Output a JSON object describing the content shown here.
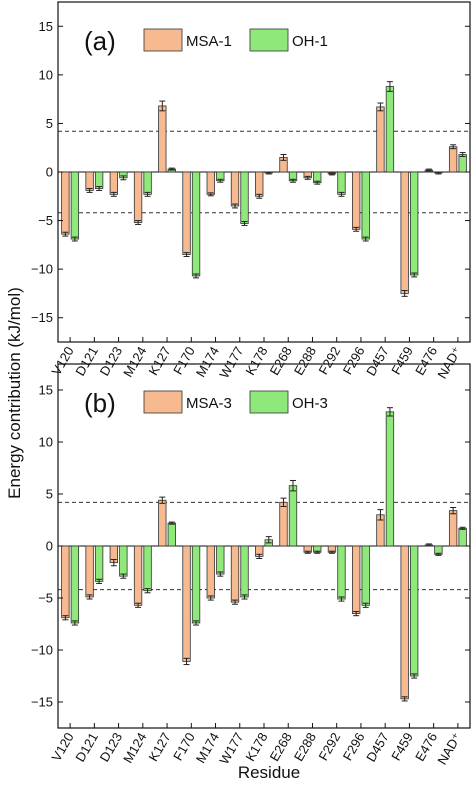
{
  "figure": {
    "ylabel": "Energy contribution (kJ/mol)",
    "xlabel": "Residue"
  },
  "chart_data": [
    {
      "type": "bar",
      "panel_label": "(a)",
      "categories": [
        "V120",
        "D121",
        "D123",
        "M124",
        "K127",
        "F170",
        "M174",
        "W177",
        "K178",
        "E268",
        "E288",
        "F292",
        "F296",
        "D457",
        "F459",
        "E476",
        "NAD⁺"
      ],
      "series": [
        {
          "name": "MSA-1",
          "color": "#f7b98f",
          "values": [
            -6.4,
            -1.9,
            -2.3,
            -5.2,
            6.8,
            -8.5,
            -2.3,
            -3.5,
            -2.5,
            1.5,
            -0.6,
            -0.2,
            -5.9,
            6.7,
            -12.5,
            0.2,
            2.6
          ],
          "errors": [
            0.2,
            0.2,
            0.2,
            0.2,
            0.5,
            0.2,
            0.15,
            0.2,
            0.2,
            0.3,
            0.15,
            0.1,
            0.2,
            0.4,
            0.3,
            0.1,
            0.2
          ]
        },
        {
          "name": "OH-1",
          "color": "#8ee87a",
          "values": [
            -6.9,
            -1.7,
            -0.6,
            -2.3,
            0.3,
            -10.7,
            -0.9,
            -5.3,
            -0.1,
            -0.9,
            -1.1,
            -2.3,
            -6.9,
            8.8,
            -10.6,
            -0.1,
            1.8
          ],
          "errors": [
            0.2,
            0.2,
            0.2,
            0.2,
            0.1,
            0.2,
            0.15,
            0.2,
            0.1,
            0.15,
            0.15,
            0.2,
            0.2,
            0.5,
            0.2,
            0.1,
            0.2
          ]
        }
      ],
      "ylim": [
        -17.5,
        17.5
      ],
      "yticks": [
        -15,
        -10,
        -5,
        0,
        5,
        10,
        15
      ],
      "reference_lines": [
        4.2,
        -4.2
      ],
      "legend_position": "top"
    },
    {
      "type": "bar",
      "panel_label": "(b)",
      "categories": [
        "V120",
        "D121",
        "D123",
        "M124",
        "K127",
        "F170",
        "M174",
        "W177",
        "K178",
        "E268",
        "E288",
        "F292",
        "F296",
        "D457",
        "F459",
        "E476",
        "NAD⁺"
      ],
      "series": [
        {
          "name": "MSA-3",
          "color": "#f7b98f",
          "values": [
            -6.9,
            -4.9,
            -1.6,
            -5.7,
            4.4,
            -11.1,
            -5.0,
            -5.4,
            -1.0,
            4.2,
            -0.6,
            -0.6,
            -6.5,
            3.0,
            -14.7,
            0.1,
            3.4
          ],
          "errors": [
            0.2,
            0.2,
            0.3,
            0.2,
            0.3,
            0.3,
            0.2,
            0.2,
            0.2,
            0.4,
            0.1,
            0.1,
            0.2,
            0.5,
            0.2,
            0.1,
            0.3
          ]
        },
        {
          "name": "OH-3",
          "color": "#8ee87a",
          "values": [
            -7.4,
            -3.4,
            -2.9,
            -4.3,
            2.2,
            -7.4,
            -2.7,
            -4.9,
            0.6,
            5.8,
            -0.6,
            -5.1,
            -5.7,
            12.9,
            -12.5,
            -0.8,
            1.7
          ],
          "errors": [
            0.2,
            0.2,
            0.2,
            0.2,
            0.1,
            0.2,
            0.2,
            0.2,
            0.3,
            0.5,
            0.1,
            0.2,
            0.2,
            0.4,
            0.2,
            0.1,
            0.1
          ]
        }
      ],
      "ylim": [
        -17.5,
        17.5
      ],
      "yticks": [
        -15,
        -10,
        -5,
        0,
        5,
        10,
        15
      ],
      "reference_lines": [
        4.2,
        -4.2
      ],
      "legend_position": "top"
    }
  ]
}
